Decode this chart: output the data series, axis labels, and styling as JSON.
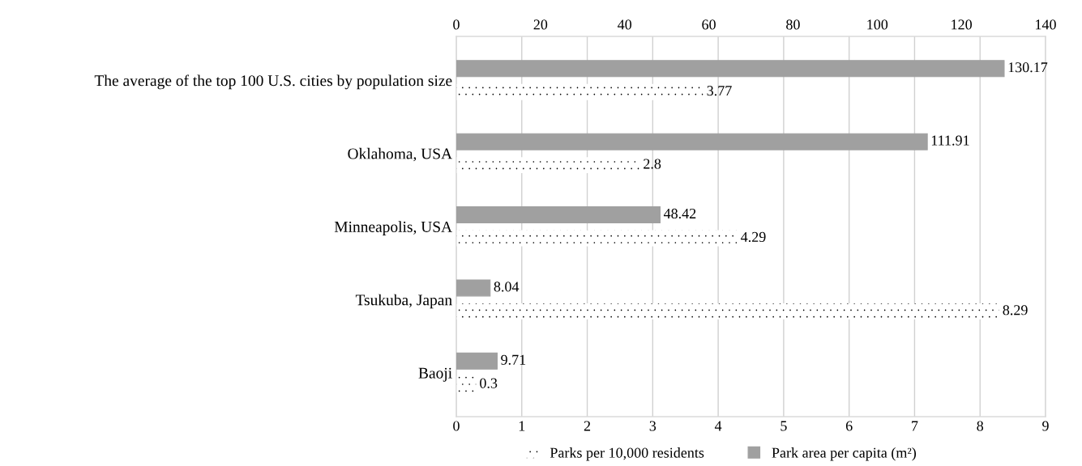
{
  "chart_data": {
    "type": "bar",
    "orientation": "horizontal",
    "categories": [
      "The average of the top 100 U.S. cities by population size",
      "Oklahoma, USA",
      "Minneapolis, USA",
      "Tsukuba, Japan",
      "Baoji"
    ],
    "series": [
      {
        "name": "Parks per 10,000 residents",
        "color": "#ffffff",
        "values": [
          3.77,
          2.8,
          4.29,
          8.29,
          0.3
        ]
      },
      {
        "name": "Park area per capita (m²)",
        "color": "#a0a0a0",
        "axis": "x2",
        "values": [
          130.17,
          111.91,
          48.42,
          8.04,
          9.71
        ]
      }
    ],
    "xlim": [
      0,
      9
    ],
    "xticks": [
      0,
      1,
      2,
      3,
      4,
      5,
      6,
      7,
      8,
      9
    ],
    "x2lim": [
      0,
      140
    ],
    "x2ticks": [
      0,
      20,
      40,
      60,
      80,
      100,
      120,
      140
    ],
    "data_labels": true,
    "grid": "x",
    "legend": "bottom"
  }
}
